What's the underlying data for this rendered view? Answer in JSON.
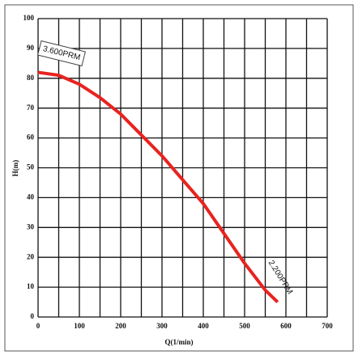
{
  "chart_data": {
    "type": "line",
    "xlabel": "Q(1/min)",
    "ylabel": "H(m)",
    "x": [
      0,
      50,
      100,
      150,
      200,
      250,
      300,
      350,
      400,
      450,
      500,
      550,
      580
    ],
    "series": [
      {
        "name": null,
        "color": "#e8231f",
        "values": [
          82,
          81,
          78,
          73.5,
          68,
          61,
          54,
          46,
          38,
          28,
          18,
          9,
          5
        ]
      }
    ],
    "xlim": [
      0,
      700
    ],
    "xticks": [
      0,
      100,
      200,
      300,
      400,
      500,
      600,
      700
    ],
    "ylim": [
      0,
      100
    ],
    "yticks": [
      0,
      10,
      20,
      30,
      40,
      50,
      60,
      70,
      80,
      90,
      100
    ],
    "grid": true,
    "annotations": [
      "3.600PRM",
      "2.200PRM"
    ]
  }
}
